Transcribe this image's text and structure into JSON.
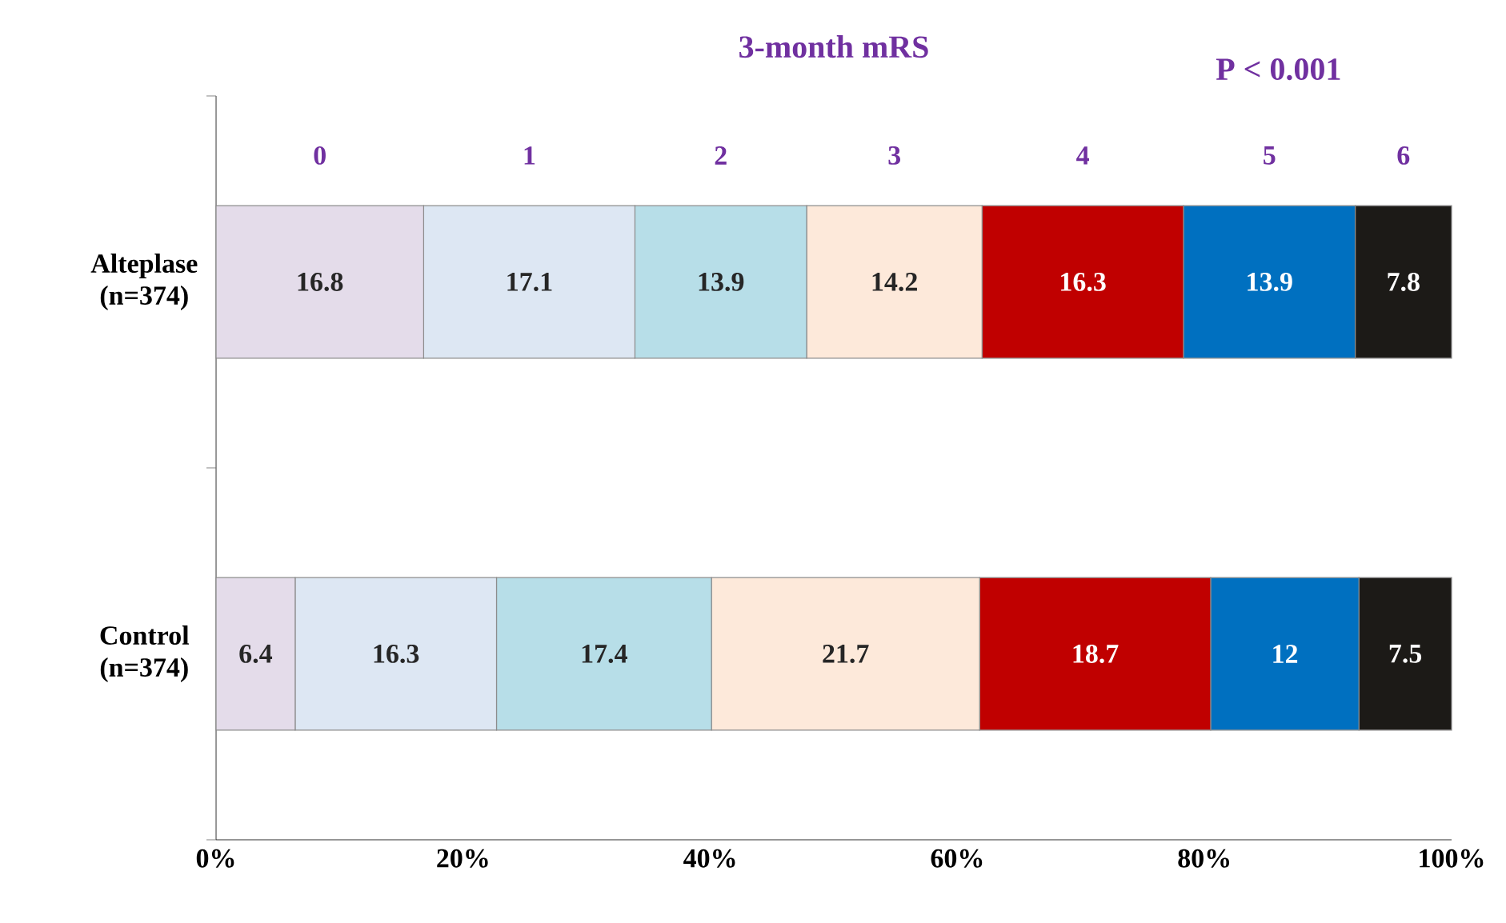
{
  "chart_data": {
    "type": "bar",
    "orientation": "horizontal",
    "stacked": true,
    "title": "3-month mRS",
    "annotations": [
      "P < 0.001"
    ],
    "categories": [
      "Alteplase (n=374)",
      "Control (n=374)"
    ],
    "series": [
      {
        "name": "0",
        "color": "#e4dcea",
        "values": [
          16.8,
          6.4
        ]
      },
      {
        "name": "1",
        "color": "#dde7f3",
        "values": [
          17.1,
          16.3
        ]
      },
      {
        "name": "2",
        "color": "#b7dee8",
        "values": [
          13.9,
          17.4
        ]
      },
      {
        "name": "3",
        "color": "#fde9da",
        "values": [
          14.2,
          21.7
        ]
      },
      {
        "name": "4",
        "color": "#c00000",
        "values": [
          16.3,
          18.7
        ]
      },
      {
        "name": "5",
        "color": "#0070c0",
        "values": [
          13.9,
          12
        ]
      },
      {
        "name": "6",
        "color": "#1c1a17",
        "values": [
          7.8,
          7.5
        ]
      }
    ],
    "data_labels": true,
    "legend": false,
    "xlim": [
      0,
      100
    ],
    "xticks": [
      {
        "value": 0,
        "label": "0%"
      },
      {
        "value": 20,
        "label": "20%"
      },
      {
        "value": 40,
        "label": "40%"
      },
      {
        "value": 60,
        "label": "60%"
      },
      {
        "value": 80,
        "label": "80%"
      },
      {
        "value": 100,
        "label": "100%"
      }
    ]
  }
}
